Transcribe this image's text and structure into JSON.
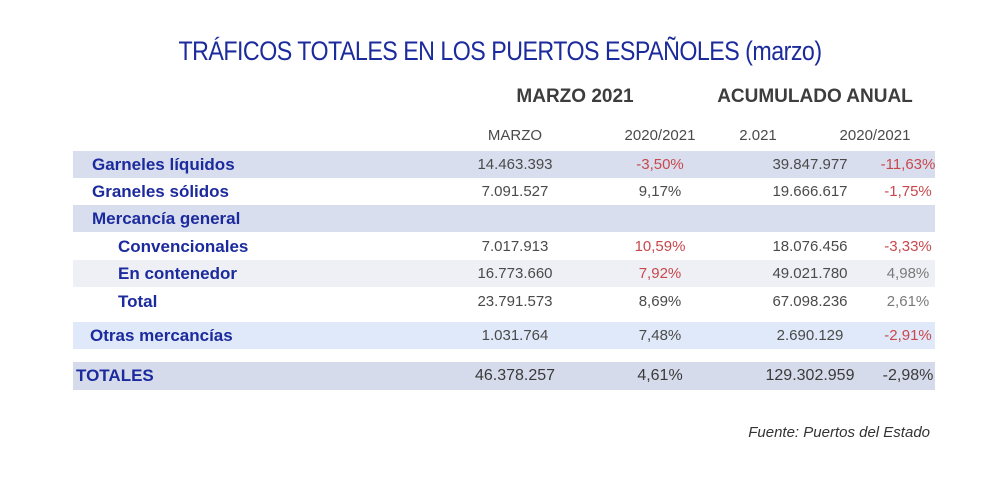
{
  "title": "TRÁFICOS TOTALES EN LOS PUERTOS ESPAÑOLES (marzo)",
  "groups": [
    "MARZO 2021",
    "ACUMULADO ANUAL"
  ],
  "columns": [
    "MARZO",
    "2020/2021",
    "2.021",
    "2020/2021"
  ],
  "rows": [
    {
      "label": "Garneles líquidos",
      "values": [
        "14.463.393",
        "-3,50%",
        "39.847.977",
        "-11,63%"
      ]
    },
    {
      "label": "Graneles sólidos",
      "values": [
        "7.091.527",
        "9,17%",
        "19.666.617",
        "-1,75%"
      ]
    },
    {
      "label": "Mercancía general",
      "values": [
        "",
        "",
        "",
        ""
      ]
    },
    {
      "label": "Convencionales",
      "values": [
        "7.017.913",
        "10,59%",
        "18.076.456",
        "-3,33%"
      ]
    },
    {
      "label": "En contenedor",
      "values": [
        "16.773.660",
        "7,92%",
        "49.021.780",
        "4,98%"
      ]
    },
    {
      "label": "Total",
      "values": [
        "23.791.573",
        "8,69%",
        "67.098.236",
        "2,61%"
      ]
    },
    {
      "label": "Otras mercancías",
      "values": [
        "1.031.764",
        "7,48%",
        "2.690.129",
        "-2,91%"
      ]
    },
    {
      "label": "TOTALES",
      "values": [
        "46.378.257",
        "4,61%",
        "129.302.959",
        "-2,98%"
      ]
    }
  ],
  "source": "Fuente: Puertos del Estado",
  "colors": {
    "label": "#1b2a9c",
    "negative": "#c8484c",
    "total_negative": "#e01a1a"
  }
}
